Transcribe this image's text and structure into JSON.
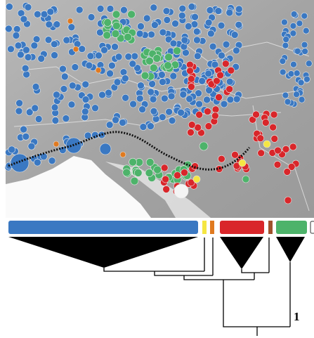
{
  "tree": {
    "node_label": "1"
  }
}
